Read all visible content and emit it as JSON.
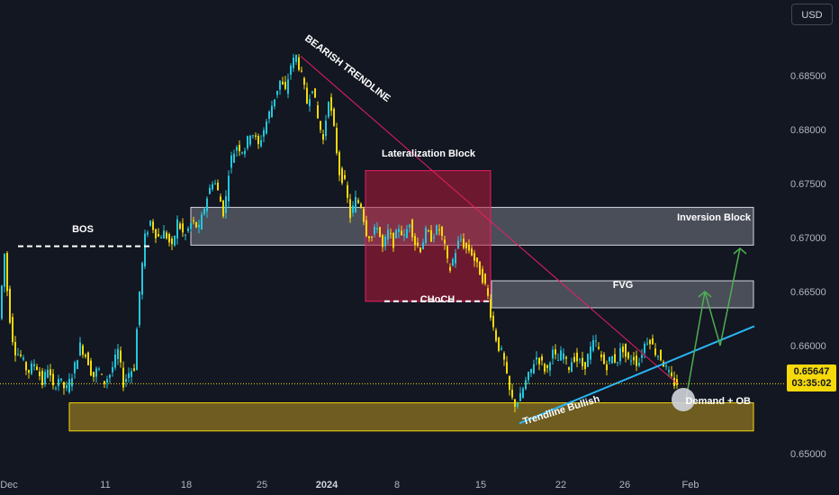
{
  "currency": {
    "label": "USD"
  },
  "last_price": {
    "price": "0.65647",
    "countdown": "03:35:02"
  },
  "annotations": {
    "bearish_trendline": "BEARISH TRENDLINE",
    "lateralization_block": "Lateralization Block",
    "bos": "BOS",
    "choch": "CHoCH",
    "inversion_block": "Inversion Block",
    "fvg": "FVG",
    "demand_ob": "Demand + OB",
    "trendline_bullish": "Trendline Bullish"
  },
  "colors": {
    "background": "#131722",
    "bull": "#26c6da",
    "bear": "#f5d90a",
    "bearish_trendline": "#e91e63",
    "bullish_trendline": "#29b6f6",
    "projection": "#4caf50",
    "zone_grey": "#787b86",
    "zone_red": "#b71c3c",
    "zone_demand": "#8d7420"
  },
  "chart_data": {
    "type": "candlestick",
    "x_axis": {
      "tick_labels": [
        "Dec",
        "11",
        "18",
        "25",
        "2024",
        "8",
        "15",
        "22",
        "26",
        "Feb"
      ]
    },
    "y_axis": {
      "tick_labels": [
        "0.68500",
        "0.68000",
        "0.67500",
        "0.67000",
        "0.66500",
        "0.66000",
        "0.65000"
      ],
      "range": [
        0.6485,
        0.6895
      ]
    },
    "price_path": [
      [
        0,
        0.6605
      ],
      [
        4,
        0.6645
      ],
      [
        8,
        0.6685
      ],
      [
        12,
        0.664
      ],
      [
        16,
        0.661
      ],
      [
        20,
        0.6595
      ],
      [
        26,
        0.659
      ],
      [
        34,
        0.6575
      ],
      [
        42,
        0.6585
      ],
      [
        50,
        0.6565
      ],
      [
        56,
        0.658
      ],
      [
        62,
        0.656
      ],
      [
        68,
        0.657
      ],
      [
        76,
        0.6558
      ],
      [
        84,
        0.6575
      ],
      [
        92,
        0.66
      ],
      [
        100,
        0.6588
      ],
      [
        106,
        0.657
      ],
      [
        112,
        0.658
      ],
      [
        118,
        0.6565
      ],
      [
        126,
        0.6575
      ],
      [
        134,
        0.6595
      ],
      [
        140,
        0.6565
      ],
      [
        146,
        0.6575
      ],
      [
        152,
        0.658
      ],
      [
        158,
        0.665
      ],
      [
        164,
        0.67
      ],
      [
        170,
        0.6715
      ],
      [
        178,
        0.67
      ],
      [
        186,
        0.6705
      ],
      [
        194,
        0.669
      ],
      [
        200,
        0.6715
      ],
      [
        208,
        0.67
      ],
      [
        216,
        0.6715
      ],
      [
        224,
        0.6708
      ],
      [
        232,
        0.6735
      ],
      [
        240,
        0.6755
      ],
      [
        246,
        0.674
      ],
      [
        252,
        0.672
      ],
      [
        258,
        0.677
      ],
      [
        266,
        0.6785
      ],
      [
        274,
        0.678
      ],
      [
        282,
        0.68
      ],
      [
        290,
        0.6785
      ],
      [
        298,
        0.6805
      ],
      [
        306,
        0.6825
      ],
      [
        314,
        0.6845
      ],
      [
        320,
        0.6835
      ],
      [
        326,
        0.686
      ],
      [
        332,
        0.6868
      ],
      [
        338,
        0.685
      ],
      [
        344,
        0.6825
      ],
      [
        350,
        0.684
      ],
      [
        356,
        0.681
      ],
      [
        362,
        0.679
      ],
      [
        368,
        0.683
      ],
      [
        374,
        0.68
      ],
      [
        380,
        0.676
      ],
      [
        386,
        0.675
      ],
      [
        392,
        0.672
      ],
      [
        398,
        0.6735
      ],
      [
        404,
        0.673
      ],
      [
        410,
        0.6705
      ],
      [
        416,
        0.67
      ],
      [
        422,
        0.6712
      ],
      [
        428,
        0.669
      ],
      [
        434,
        0.6705
      ],
      [
        440,
        0.6695
      ],
      [
        446,
        0.671
      ],
      [
        452,
        0.67
      ],
      [
        458,
        0.6715
      ],
      [
        464,
        0.6695
      ],
      [
        470,
        0.669
      ],
      [
        476,
        0.6705
      ],
      [
        482,
        0.67
      ],
      [
        490,
        0.671
      ],
      [
        496,
        0.6695
      ],
      [
        502,
        0.6668
      ],
      [
        508,
        0.6685
      ],
      [
        514,
        0.67
      ],
      [
        520,
        0.669
      ],
      [
        526,
        0.6688
      ],
      [
        532,
        0.6675
      ],
      [
        538,
        0.6665
      ],
      [
        544,
        0.665
      ],
      [
        550,
        0.662
      ],
      [
        556,
        0.66
      ],
      [
        562,
        0.659
      ],
      [
        568,
        0.656
      ],
      [
        574,
        0.6545
      ],
      [
        580,
        0.655
      ],
      [
        586,
        0.6565
      ],
      [
        592,
        0.6575
      ],
      [
        598,
        0.659
      ],
      [
        604,
        0.6585
      ],
      [
        610,
        0.6575
      ],
      [
        616,
        0.6595
      ],
      [
        622,
        0.6585
      ],
      [
        628,
        0.6595
      ],
      [
        634,
        0.6578
      ],
      [
        640,
        0.659
      ],
      [
        646,
        0.6585
      ],
      [
        652,
        0.658
      ],
      [
        658,
        0.6595
      ],
      [
        664,
        0.6605
      ],
      [
        670,
        0.659
      ],
      [
        676,
        0.658
      ],
      [
        682,
        0.659
      ],
      [
        688,
        0.6585
      ],
      [
        694,
        0.66
      ],
      [
        700,
        0.6585
      ],
      [
        706,
        0.659
      ],
      [
        712,
        0.6582
      ],
      [
        718,
        0.66
      ],
      [
        724,
        0.6608
      ],
      [
        730,
        0.6595
      ],
      [
        736,
        0.659
      ],
      [
        742,
        0.658
      ],
      [
        748,
        0.657
      ],
      [
        752,
        0.6565
      ]
    ],
    "zones": [
      {
        "name": "inversion-block",
        "x0": 212,
        "x1": 837,
        "top": 0.6728,
        "bottom": 0.6693
      },
      {
        "name": "lateralization-block",
        "x0": 406,
        "x1": 545,
        "top": 0.6762,
        "bottom": 0.6641
      },
      {
        "name": "fvg",
        "x0": 546,
        "x1": 837,
        "top": 0.666,
        "bottom": 0.6635
      },
      {
        "name": "demand-ob",
        "x0": 77,
        "x1": 837,
        "top": 0.6547,
        "bottom": 0.6521
      }
    ],
    "levels": [
      {
        "name": "bos-level",
        "x0": 20,
        "x1": 166,
        "y": 0.6692
      },
      {
        "name": "choch-level",
        "x0": 427,
        "x1": 543,
        "y": 0.6641
      }
    ],
    "trendlines": [
      {
        "name": "bearish-trendline",
        "x0": 334,
        "y0": 0.6868,
        "x1": 752,
        "y1": 0.6565
      },
      {
        "name": "bullish-trendline",
        "x0": 577,
        "y0": 0.6528,
        "x1": 838,
        "y1": 0.6618
      }
    ],
    "projection": [
      [
        762,
        0.655
      ],
      [
        783,
        0.665
      ],
      [
        800,
        0.66
      ],
      [
        822,
        0.669
      ]
    ],
    "marker": {
      "x": 759,
      "y": 0.655
    },
    "last_price_level": 0.65647
  }
}
